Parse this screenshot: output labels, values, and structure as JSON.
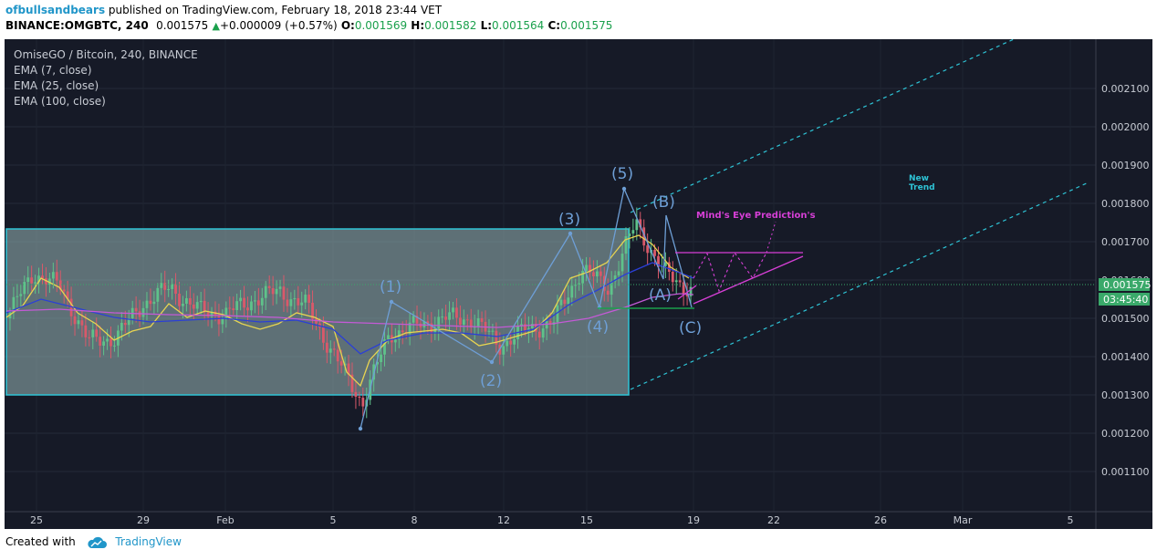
{
  "header": {
    "author": "ofbullsandbears",
    "published_text": "published on TradingView.com, February 18, 2018 23:44 VET",
    "symbol": "BINANCE:OMGBTC, 240",
    "last": "0.001575",
    "up_arrow": "▲",
    "change": "+0.000009 (+0.57%)",
    "o_label": "O:",
    "o_value": "0.001569",
    "h_label": "H:",
    "h_value": "0.001582",
    "l_label": "L:",
    "l_value": "0.001564",
    "c_label": "C:",
    "c_value": "0.001575"
  },
  "legend": {
    "title": "OmiseGO / Bitcoin, 240, BINANCE",
    "ema7": "EMA (7, close)",
    "ema25": "EMA (25, close)",
    "ema100": "EMA (100, close)"
  },
  "price_axis": {
    "labels": [
      "0.002100",
      "0.002000",
      "0.001900",
      "0.001800",
      "0.001700",
      "0.001600",
      "0.001500",
      "0.001400",
      "0.001300",
      "0.001200",
      "0.001100"
    ],
    "current_price": "0.001575",
    "countdown": "03:45:40"
  },
  "time_axis": {
    "labels": [
      "25",
      "29",
      "Feb",
      "5",
      "8",
      "12",
      "15",
      "19",
      "22",
      "26",
      "Mar",
      "5"
    ]
  },
  "annotations": {
    "wave1": "(1)",
    "wave2": "(2)",
    "wave3": "(3)",
    "wave4": "(4)",
    "wave5": "(5)",
    "waveA": "(A)",
    "waveB": "(B)",
    "waveC": "(C)",
    "prediction": "Mind's Eye Prediction's",
    "new_trend_1": "New",
    "new_trend_2": "Trend"
  },
  "colors": {
    "background": "#161a27",
    "candle_up": "#5fc28a",
    "candle_down": "#d9596a",
    "ema7": "#e8d451",
    "ema25": "#2b3fd6",
    "ema100": "#c45ad6",
    "channel": "#2ec4d6",
    "wave": "#6e9fd6",
    "prediction": "#d63fd6",
    "price_tag": "#3aa96a",
    "brand": "#2196c9"
  },
  "footer": {
    "created_with": "Created with",
    "brand": "TradingView"
  },
  "chart_data": {
    "type": "candlestick",
    "title": "OmiseGO / Bitcoin, 240, BINANCE",
    "ylim": [
      0.001,
      0.0022
    ],
    "x_ticks": [
      "25",
      "29",
      "Feb",
      "5",
      "8",
      "12",
      "15",
      "19",
      "22",
      "26",
      "Mar",
      "5"
    ],
    "y_ticks": [
      0.0021,
      0.002,
      0.0019,
      0.0018,
      0.0017,
      0.0016,
      0.0015,
      0.0014,
      0.0013,
      0.0012,
      0.0011
    ],
    "last_price": 0.001575,
    "close_points": [
      {
        "x": "Jan 24",
        "y": 0.0015
      },
      {
        "x": "Jan 25",
        "y": 0.00162
      },
      {
        "x": "Jan 26",
        "y": 0.00158
      },
      {
        "x": "Jan 27",
        "y": 0.00144
      },
      {
        "x": "Jan 28",
        "y": 0.00145
      },
      {
        "x": "Jan 29",
        "y": 0.00154
      },
      {
        "x": "Jan 30",
        "y": 0.00158
      },
      {
        "x": "Jan 31",
        "y": 0.00152
      },
      {
        "x": "Feb 1",
        "y": 0.00151
      },
      {
        "x": "Feb 2",
        "y": 0.00155
      },
      {
        "x": "Feb 3",
        "y": 0.00157
      },
      {
        "x": "Feb 4",
        "y": 0.00153
      },
      {
        "x": "Feb 5",
        "y": 0.0014
      },
      {
        "x": "Feb 6",
        "y": 0.00128
      },
      {
        "x": "Feb 7",
        "y": 0.00146
      },
      {
        "x": "Feb 8",
        "y": 0.00148
      },
      {
        "x": "Feb 9",
        "y": 0.0015
      },
      {
        "x": "Feb 10",
        "y": 0.0015
      },
      {
        "x": "Feb 11",
        "y": 0.00143
      },
      {
        "x": "Feb 12",
        "y": 0.00147
      },
      {
        "x": "Feb 13",
        "y": 0.00149
      },
      {
        "x": "Feb 14",
        "y": 0.00163
      },
      {
        "x": "Feb 15",
        "y": 0.00158
      },
      {
        "x": "Feb 16",
        "y": 0.00175
      },
      {
        "x": "Feb 17",
        "y": 0.00162
      },
      {
        "x": "Feb 18",
        "y": 0.001575
      }
    ],
    "elliott_wave": [
      {
        "label": "(1)",
        "y": 0.00153
      },
      {
        "label": "(2)",
        "y": 0.00138
      },
      {
        "label": "(3)",
        "y": 0.0017
      },
      {
        "label": "(4)",
        "y": 0.00152
      },
      {
        "label": "(5)",
        "y": 0.00182
      },
      {
        "label": "(A)",
        "y": 0.00158
      },
      {
        "label": "(B)",
        "y": 0.00175
      },
      {
        "label": "(C)",
        "y": 0.00151
      }
    ],
    "range_box": {
      "top": 0.00171,
      "bottom": 0.00129
    },
    "series": [
      {
        "name": "EMA (7, close)"
      },
      {
        "name": "EMA (25, close)"
      },
      {
        "name": "EMA (100, close)"
      }
    ]
  }
}
